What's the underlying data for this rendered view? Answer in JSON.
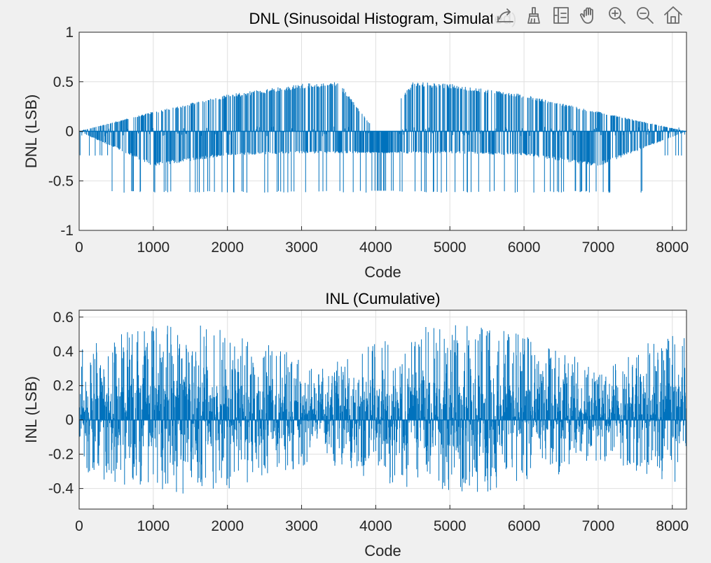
{
  "chart_data": [
    {
      "type": "bar",
      "title": "DNL (Sinusoidal Histogram, Simulated)",
      "xlabel": "Code",
      "ylabel": "DNL (LSB)",
      "xlim": [
        0,
        8191
      ],
      "ylim": [
        -1,
        1
      ],
      "xticks": [
        "0",
        "1000",
        "2000",
        "3000",
        "4000",
        "5000",
        "6000",
        "7000",
        "8000"
      ],
      "yticks": [
        "-1",
        "-0.5",
        "0",
        "0.5",
        "1"
      ],
      "grid": true,
      "color": "#0072BD",
      "envelope_description_codes": [
        0,
        1000,
        2000,
        3000,
        3500,
        4000,
        4500,
        5000,
        6000,
        7000,
        8191
      ],
      "positive_envelope": [
        0.0,
        0.2,
        0.37,
        0.48,
        0.5,
        0.0,
        0.5,
        0.48,
        0.37,
        0.2,
        0.0
      ],
      "negative_envelope": [
        0.0,
        -0.35,
        -0.24,
        -0.22,
        -0.22,
        -0.22,
        -0.22,
        -0.22,
        -0.24,
        -0.35,
        0.0
      ],
      "max_value": 0.56,
      "min_value": -0.62
    },
    {
      "type": "bar",
      "title": "INL (Cumulative)",
      "xlabel": "Code",
      "ylabel": "INL (LSB)",
      "xlim": [
        0,
        8191
      ],
      "ylim": [
        -0.52,
        0.64
      ],
      "xticks": [
        "0",
        "1000",
        "2000",
        "3000",
        "4000",
        "5000",
        "6000",
        "7000",
        "8000"
      ],
      "yticks": [
        "-0.4",
        "-0.2",
        "0",
        "0.2",
        "0.4",
        "0.6"
      ],
      "grid": true,
      "color": "#0072BD",
      "max_value": 0.59,
      "min_value": -0.48
    }
  ],
  "toolbar": {
    "icons": [
      "export-icon",
      "brush-icon",
      "data-tip-icon",
      "pan-icon",
      "zoom-in-icon",
      "zoom-out-icon",
      "home-icon"
    ]
  }
}
